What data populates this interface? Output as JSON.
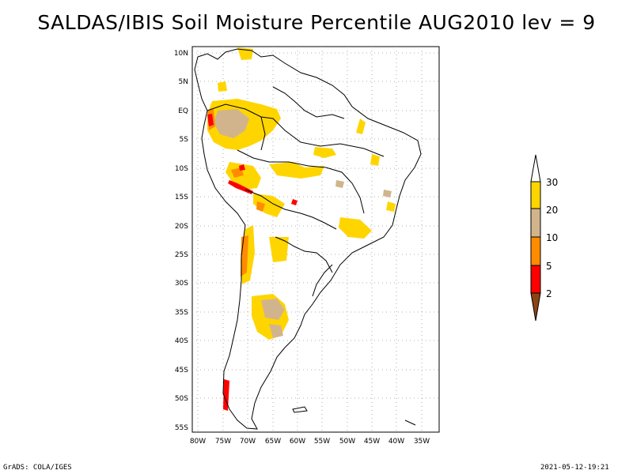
{
  "title": "SALDAS/IBIS Soil Moisture Percentile AUG2010 lev = 9",
  "footer": {
    "left": "GrADS: COLA/IGES",
    "right": "2021-05-12-19:21"
  },
  "axes": {
    "lat_labels": [
      "10N",
      "5N",
      "EQ",
      "5S",
      "10S",
      "15S",
      "20S",
      "25S",
      "30S",
      "35S",
      "40S",
      "45S",
      "50S",
      "55S"
    ],
    "lon_labels": [
      "80W",
      "75W",
      "70W",
      "65W",
      "60W",
      "55W",
      "50W",
      "45W",
      "40W",
      "35W"
    ]
  },
  "colorbar": {
    "labels": [
      "30",
      "20",
      "10",
      "5",
      "2"
    ],
    "colors": {
      "top_arrow": "#ffffff",
      "band_20_30": "#ffd500",
      "band_10_20": "#d2b48c",
      "band_5_10": "#ff8c00",
      "band_2_5": "#ff0000",
      "bottom_arrow": "#8b4513"
    }
  }
}
